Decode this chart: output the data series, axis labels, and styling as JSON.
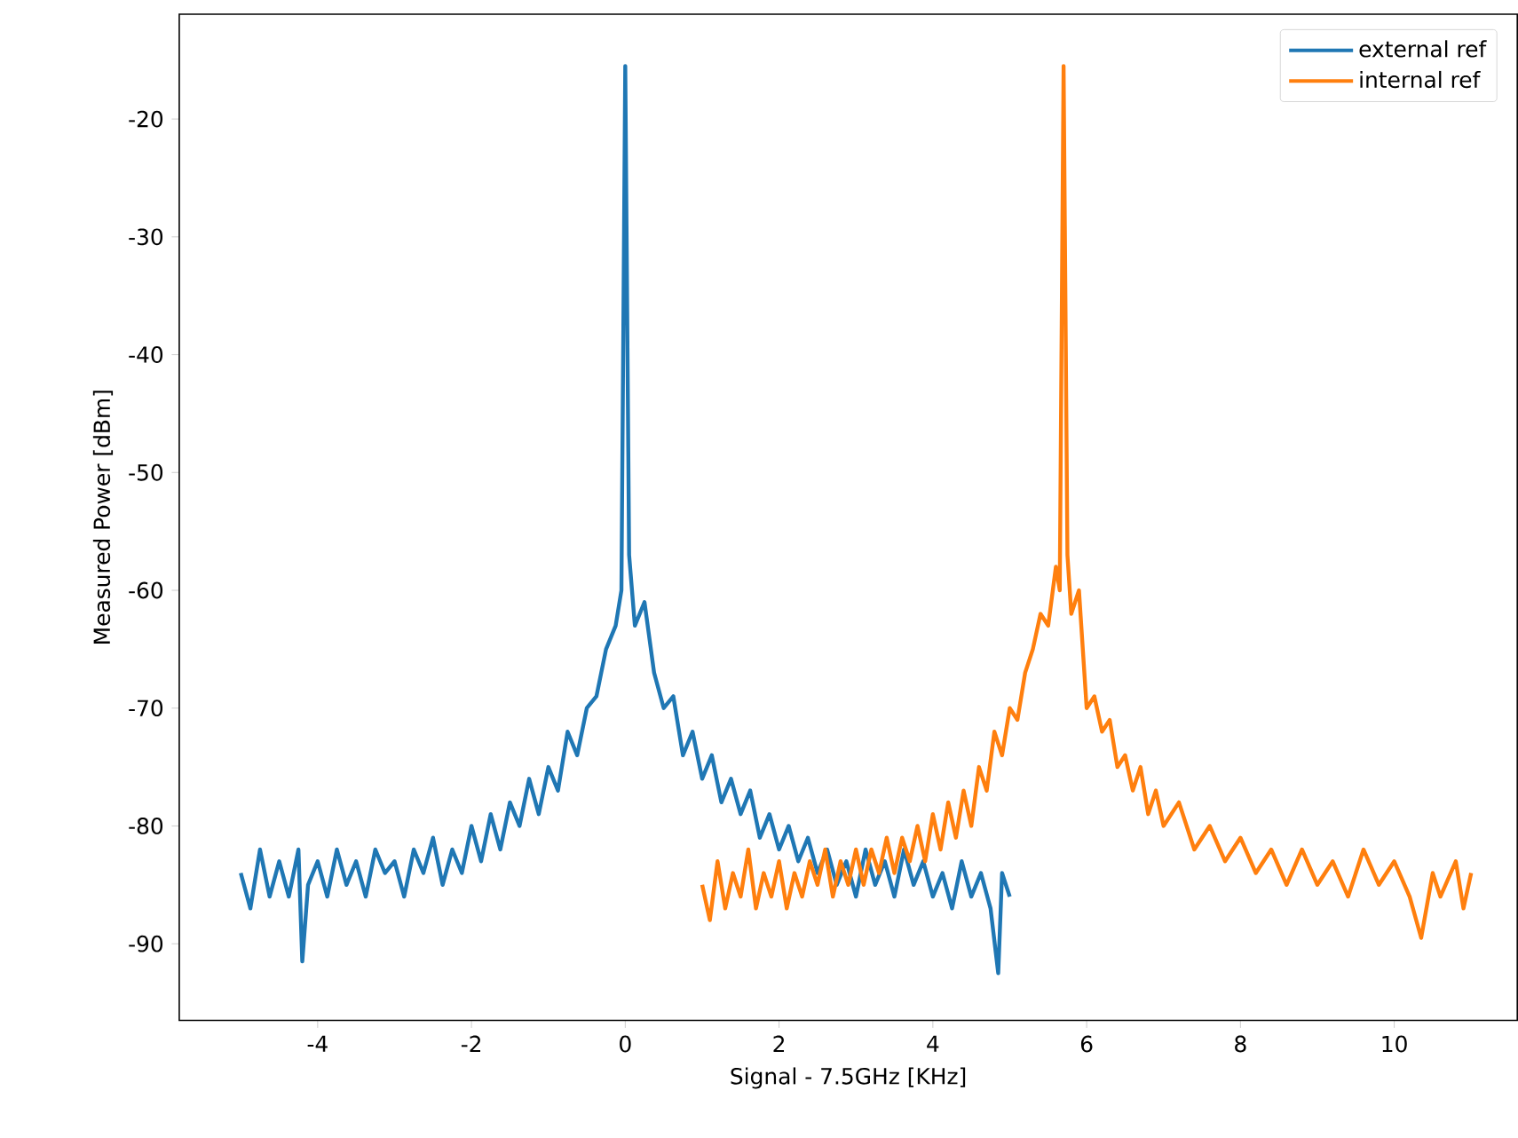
{
  "chart_data": {
    "type": "line",
    "xlabel": "Signal - 7.5GHz [KHz]",
    "ylabel": "Measured Power [dBm]",
    "xlim": [
      -5.8,
      11.6
    ],
    "ylim": [
      -96.5,
      -11.1
    ],
    "xticks": [
      -4,
      -2,
      0,
      2,
      4,
      6,
      8,
      10
    ],
    "yticks": [
      -90,
      -80,
      -70,
      -60,
      -50,
      -40,
      -30,
      -20
    ],
    "legend": "top right",
    "grid": false,
    "marker": "none",
    "line_style": "solid",
    "series": [
      {
        "name": "external ref",
        "color": "#1f77b4",
        "x": [
          -5.0,
          -4.875,
          -4.75,
          -4.625,
          -4.5,
          -4.375,
          -4.25,
          -4.2,
          -4.125,
          -4.0,
          -3.875,
          -3.75,
          -3.625,
          -3.5,
          -3.375,
          -3.25,
          -3.125,
          -3.0,
          -2.875,
          -2.75,
          -2.625,
          -2.5,
          -2.375,
          -2.25,
          -2.125,
          -2.0,
          -1.875,
          -1.75,
          -1.625,
          -1.5,
          -1.375,
          -1.25,
          -1.125,
          -1.0,
          -0.875,
          -0.75,
          -0.625,
          -0.5,
          -0.375,
          -0.25,
          -0.125,
          -0.05,
          0,
          0.05,
          0.125,
          0.25,
          0.375,
          0.5,
          0.625,
          0.75,
          0.875,
          1.0,
          1.125,
          1.25,
          1.375,
          1.5,
          1.625,
          1.75,
          1.875,
          2.0,
          2.125,
          2.25,
          2.375,
          2.5,
          2.625,
          2.75,
          2.875,
          3.0,
          3.125,
          3.25,
          3.375,
          3.5,
          3.625,
          3.75,
          3.875,
          4.0,
          4.125,
          4.25,
          4.375,
          4.5,
          4.625,
          4.75,
          4.85,
          4.9,
          5.0
        ],
        "values": [
          -84,
          -87,
          -82,
          -86,
          -83,
          -86,
          -82,
          -91.5,
          -85,
          -83,
          -86,
          -82,
          -85,
          -83,
          -86,
          -82,
          -84,
          -83,
          -86,
          -82,
          -84,
          -81,
          -85,
          -82,
          -84,
          -80,
          -83,
          -79,
          -82,
          -78,
          -80,
          -76,
          -79,
          -75,
          -77,
          -72,
          -74,
          -70,
          -69,
          -65,
          -63,
          -60,
          -15.5,
          -57,
          -63,
          -61,
          -67,
          -70,
          -69,
          -74,
          -72,
          -76,
          -74,
          -78,
          -76,
          -79,
          -77,
          -81,
          -79,
          -82,
          -80,
          -83,
          -81,
          -84,
          -82,
          -85,
          -83,
          -86,
          -82,
          -85,
          -83,
          -86,
          -82,
          -85,
          -83,
          -86,
          -84,
          -87,
          -83,
          -86,
          -84,
          -87,
          -92.5,
          -84,
          -86
        ]
      },
      {
        "name": "internal ref",
        "color": "#ff7f0e",
        "x": [
          1.0,
          1.1,
          1.2,
          1.3,
          1.4,
          1.5,
          1.6,
          1.7,
          1.8,
          1.9,
          2.0,
          2.1,
          2.2,
          2.3,
          2.4,
          2.5,
          2.6,
          2.7,
          2.8,
          2.9,
          3.0,
          3.1,
          3.2,
          3.3,
          3.4,
          3.5,
          3.6,
          3.7,
          3.8,
          3.9,
          4.0,
          4.1,
          4.2,
          4.3,
          4.4,
          4.5,
          4.6,
          4.7,
          4.8,
          4.9,
          5.0,
          5.1,
          5.2,
          5.3,
          5.4,
          5.5,
          5.6,
          5.65,
          5.7,
          5.75,
          5.8,
          5.9,
          6.0,
          6.1,
          6.2,
          6.3,
          6.4,
          6.5,
          6.6,
          6.7,
          6.8,
          6.9,
          7.0,
          7.2,
          7.4,
          7.6,
          7.8,
          8.0,
          8.2,
          8.4,
          8.6,
          8.8,
          9.0,
          9.2,
          9.4,
          9.6,
          9.8,
          10.0,
          10.2,
          10.35,
          10.5,
          10.6,
          10.8,
          10.9,
          11.0
        ],
        "values": [
          -85,
          -88,
          -83,
          -87,
          -84,
          -86,
          -82,
          -87,
          -84,
          -86,
          -83,
          -87,
          -84,
          -86,
          -83,
          -85,
          -82,
          -86,
          -83,
          -85,
          -82,
          -85,
          -82,
          -84,
          -81,
          -84,
          -81,
          -83,
          -80,
          -83,
          -79,
          -82,
          -78,
          -81,
          -77,
          -80,
          -75,
          -77,
          -72,
          -74,
          -70,
          -71,
          -67,
          -65,
          -62,
          -63,
          -58,
          -60,
          -15.5,
          -57,
          -62,
          -60,
          -70,
          -69,
          -72,
          -71,
          -75,
          -74,
          -77,
          -75,
          -79,
          -77,
          -80,
          -78,
          -82,
          -80,
          -83,
          -81,
          -84,
          -82,
          -85,
          -82,
          -85,
          -83,
          -86,
          -82,
          -85,
          -83,
          -86,
          -89.5,
          -84,
          -86,
          -83,
          -87,
          -84
        ]
      }
    ]
  }
}
